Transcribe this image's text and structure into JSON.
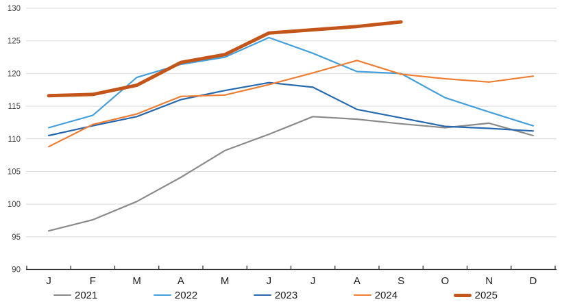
{
  "page": {
    "background": "#FFFFFF",
    "title": ""
  },
  "chart_data": {
    "type": "line",
    "title": "",
    "xlabel": "",
    "ylabel": "",
    "categories": [
      "J",
      "F",
      "M",
      "A",
      "M",
      "J",
      "J",
      "A",
      "S",
      "O",
      "N",
      "D"
    ],
    "series": [
      {
        "name": "2021",
        "color": "#8A8A8A",
        "stroke_width": 2.2,
        "values": [
          95.9,
          97.6,
          100.4,
          104.1,
          108.2,
          110.7,
          113.4,
          113.0,
          112.3,
          111.7,
          112.4,
          110.5
        ]
      },
      {
        "name": "2022",
        "color": "#41A0DB",
        "stroke_width": 2.2,
        "values": [
          111.7,
          113.6,
          119.4,
          121.4,
          122.5,
          125.5,
          123.1,
          120.3,
          120.0,
          116.3,
          114.1,
          112.0
        ]
      },
      {
        "name": "2023",
        "color": "#2568AE",
        "stroke_width": 2.2,
        "values": [
          110.5,
          112.0,
          113.4,
          116.0,
          117.4,
          118.6,
          117.9,
          114.5,
          113.2,
          111.9,
          111.6,
          111.2
        ]
      },
      {
        "name": "2024",
        "color": "#EE7D31",
        "stroke_width": 2.2,
        "values": [
          108.8,
          112.2,
          113.8,
          116.5,
          116.7,
          118.3,
          120.1,
          122.0,
          119.9,
          119.2,
          118.7,
          119.6
        ]
      },
      {
        "name": "2025",
        "color": "#C4551A",
        "stroke_width": 5,
        "values": [
          116.6,
          116.8,
          118.2,
          121.7,
          122.9,
          126.2,
          126.7,
          127.2,
          127.9,
          null,
          null,
          null
        ]
      }
    ],
    "ylim": [
      90,
      130
    ],
    "ytick_step": 5,
    "grid": true,
    "legend_position": "bottom",
    "style": {
      "gridline_color": "#D9D9D9",
      "axis_color": "#1F1F1F",
      "y_label_color": "#404040",
      "x_label_color": "#1A1A1A"
    }
  }
}
